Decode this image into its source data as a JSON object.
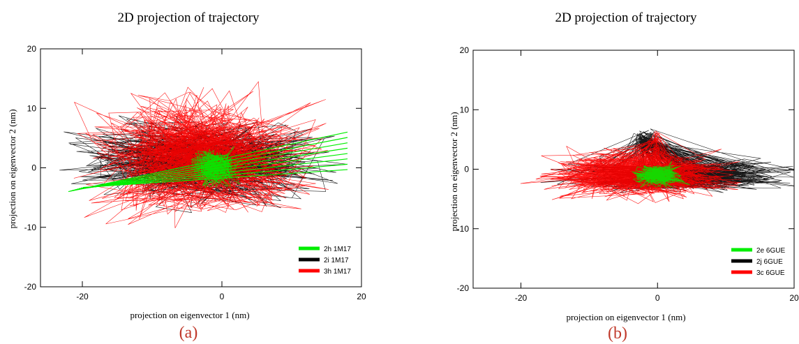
{
  "chart_data": [
    {
      "type": "line",
      "panel_label": "(a)",
      "title": "2D projection of trajectory",
      "xlabel": "projection on eigenvector 1 (nm)",
      "ylabel": "projection on eigenvector 2 (nm)",
      "xlim": [
        -26,
        20
      ],
      "ylim": [
        -20,
        20
      ],
      "xticks": [
        -20,
        0,
        20
      ],
      "yticks": [
        20,
        10,
        0,
        -10,
        -20
      ],
      "legend_position": "bottom-right",
      "series": [
        {
          "name": "2h  1M17",
          "color": "#00ee00",
          "center": [
            -1,
            0
          ],
          "spread": [
            2.5,
            2.5
          ],
          "streak_from": [
            -22,
            -4
          ],
          "streak_to": [
            18,
            6
          ]
        },
        {
          "name": "2i  1M17",
          "color": "#000000",
          "center": [
            -3,
            1
          ],
          "spread": [
            13,
            5
          ]
        },
        {
          "name": "3h  1M17",
          "color": "#ff0000",
          "center": [
            -3,
            2
          ],
          "spread": [
            12,
            8
          ]
        }
      ]
    },
    {
      "type": "line",
      "panel_label": "(b)",
      "title": "2D projection of trajectory",
      "xlabel": "projection on eigenvector 1 (nm)",
      "ylabel": "projection on eigenvector 2 (nm)",
      "xlim": [
        -27,
        20
      ],
      "ylim": [
        -20,
        20
      ],
      "xticks": [
        -20,
        0,
        20
      ],
      "yticks": [
        20,
        10,
        0,
        -10,
        -20
      ],
      "legend_position": "bottom-right",
      "series": [
        {
          "name": "2e 6GUE",
          "color": "#00ee00",
          "center": [
            0,
            -1
          ],
          "spread": [
            3,
            1.5
          ]
        },
        {
          "name": "2j 6GUE",
          "color": "#000000",
          "center": [
            3,
            -1
          ],
          "spread": [
            12,
            2
          ],
          "cluster": [
            -2,
            5
          ]
        },
        {
          "name": "3c 6GUE",
          "color": "#ff0000",
          "center": [
            -3,
            -1
          ],
          "spread": [
            11,
            3
          ],
          "column": [
            0,
            3
          ]
        }
      ]
    }
  ]
}
